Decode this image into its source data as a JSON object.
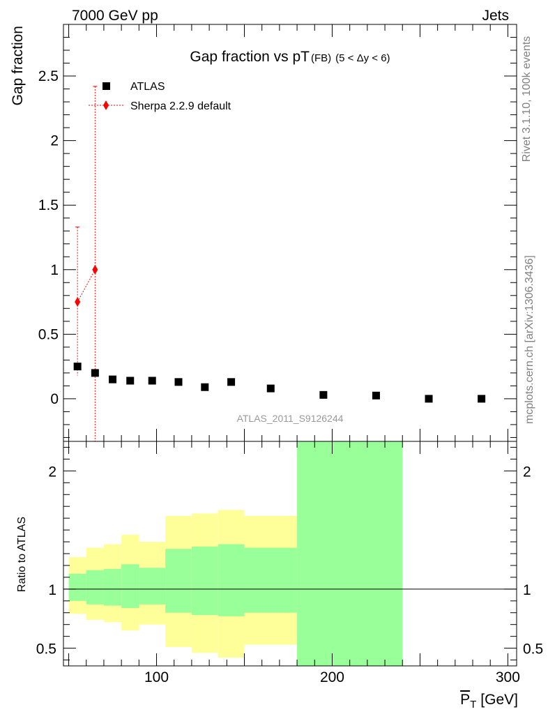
{
  "header": {
    "left": "7000 GeV pp",
    "right": "Jets"
  },
  "side_text": {
    "upper": "Rivet 3.1.10,  100k events",
    "lower": "mcplots.cern.ch [arXiv:1306.3436]"
  },
  "watermark": "ATLAS_2011_S9126244",
  "chart_data": {
    "type": "scatter",
    "title_main": "Gap fraction vs pT",
    "title_sub": "(FB)",
    "title_range": "(5 < Δy < 6)",
    "ylabel": "Gap fraction",
    "xlabel_sym": "P",
    "xlabel_sub": "T",
    "xlabel_unit": "[GeV]",
    "xlim": [
      47,
      305
    ],
    "ylim": [
      -0.33,
      2.9
    ],
    "xticks": [
      100,
      200,
      300
    ],
    "yticks": [
      0,
      0.5,
      1,
      1.5,
      2,
      2.5
    ],
    "ytick_labels": [
      "0",
      "0.5",
      "1",
      "1.5",
      "2",
      "2.5"
    ],
    "legend": {
      "atlas": "ATLAS",
      "sherpa": "Sherpa 2.2.9 default"
    },
    "atlas": {
      "color": "#000000",
      "points": [
        {
          "x": 55,
          "y": 0.25
        },
        {
          "x": 65,
          "y": 0.2
        },
        {
          "x": 75,
          "y": 0.15
        },
        {
          "x": 85,
          "y": 0.14
        },
        {
          "x": 97.5,
          "y": 0.14
        },
        {
          "x": 112.5,
          "y": 0.13
        },
        {
          "x": 127.5,
          "y": 0.09
        },
        {
          "x": 142.5,
          "y": 0.13
        },
        {
          "x": 165,
          "y": 0.08
        },
        {
          "x": 195,
          "y": 0.03
        },
        {
          "x": 225,
          "y": 0.025
        },
        {
          "x": 255,
          "y": 0.0
        },
        {
          "x": 285,
          "y": 0.0
        }
      ]
    },
    "sherpa": {
      "color": "#ff0000",
      "points": [
        {
          "x": 55,
          "y": 0.75,
          "ylo": 0.18,
          "yhi": 1.33
        },
        {
          "x": 65,
          "y": 1.0,
          "ylo": -0.4,
          "yhi": 2.42
        }
      ]
    },
    "ratio": {
      "ylabel": "Ratio to ATLAS",
      "ylim": [
        0.35,
        2.25
      ],
      "yticks": [
        0.5,
        1,
        2
      ],
      "ytick_labels": [
        "0.5",
        "1",
        "2"
      ],
      "green_color": "#99ff99",
      "yellow_color": "#ffff99",
      "bands": [
        {
          "x0": 50,
          "x1": 60,
          "g_lo": 0.9,
          "g_hi": 1.13,
          "y_lo": 0.79,
          "y_hi": 1.27
        },
        {
          "x0": 60,
          "x1": 70,
          "g_lo": 0.87,
          "g_hi": 1.16,
          "y_lo": 0.74,
          "y_hi": 1.35
        },
        {
          "x0": 70,
          "x1": 80,
          "g_lo": 0.86,
          "g_hi": 1.17,
          "y_lo": 0.72,
          "y_hi": 1.38
        },
        {
          "x0": 80,
          "x1": 90,
          "g_lo": 0.84,
          "g_hi": 1.21,
          "y_lo": 0.65,
          "y_hi": 1.46
        },
        {
          "x0": 90,
          "x1": 105,
          "g_lo": 0.87,
          "g_hi": 1.18,
          "y_lo": 0.7,
          "y_hi": 1.4
        },
        {
          "x0": 105,
          "x1": 120,
          "g_lo": 0.8,
          "g_hi": 1.34,
          "y_lo": 0.51,
          "y_hi": 1.62
        },
        {
          "x0": 120,
          "x1": 135,
          "g_lo": 0.78,
          "g_hi": 1.36,
          "y_lo": 0.46,
          "y_hi": 1.64
        },
        {
          "x0": 135,
          "x1": 150,
          "g_lo": 0.77,
          "g_hi": 1.38,
          "y_lo": 0.42,
          "y_hi": 1.67
        },
        {
          "x0": 150,
          "x1": 180,
          "g_lo": 0.8,
          "g_hi": 1.35,
          "y_lo": 0.53,
          "y_hi": 1.62
        },
        {
          "x0": 180,
          "x1": 240,
          "g_lo": 0.0,
          "g_hi": 3.0,
          "y_lo": 0.0,
          "y_hi": 3.0
        }
      ]
    }
  }
}
